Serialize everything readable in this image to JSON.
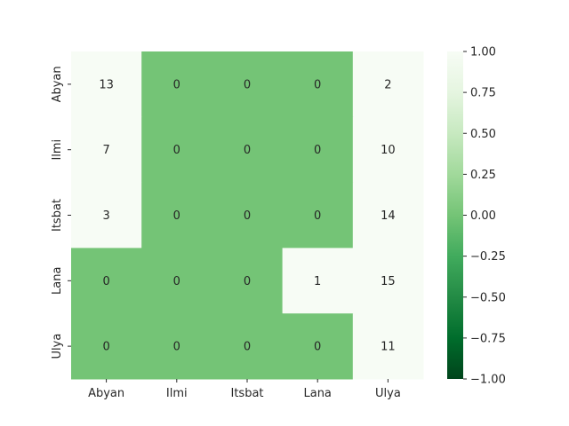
{
  "chart_data": {
    "type": "heatmap",
    "title": "",
    "xlabel": "",
    "ylabel": "",
    "x_categories": [
      "Abyan",
      "Ilmi",
      "Itsbat",
      "Lana",
      "Ulya"
    ],
    "y_categories": [
      "Abyan",
      "Ilmi",
      "Itsbat",
      "Lana",
      "Ulya"
    ],
    "values": [
      [
        13,
        0,
        0,
        0,
        2
      ],
      [
        7,
        0,
        0,
        0,
        10
      ],
      [
        3,
        0,
        0,
        0,
        14
      ],
      [
        0,
        0,
        0,
        1,
        15
      ],
      [
        0,
        0,
        0,
        0,
        11
      ]
    ],
    "color_range": [
      -1.0,
      1.0
    ],
    "colormap": "Greens_r",
    "colorbar_ticks": [
      "1.00",
      "0.75",
      "0.50",
      "0.25",
      "0.00",
      "−0.25",
      "−0.50",
      "−0.75",
      "−1.00"
    ],
    "colorbar_tick_values": [
      1.0,
      0.75,
      0.5,
      0.25,
      0.0,
      -0.25,
      -0.5,
      -0.75,
      -1.0
    ],
    "colors": {
      "high": "#f7fcf5",
      "mid": "#74c476",
      "low": "#00441b"
    }
  }
}
